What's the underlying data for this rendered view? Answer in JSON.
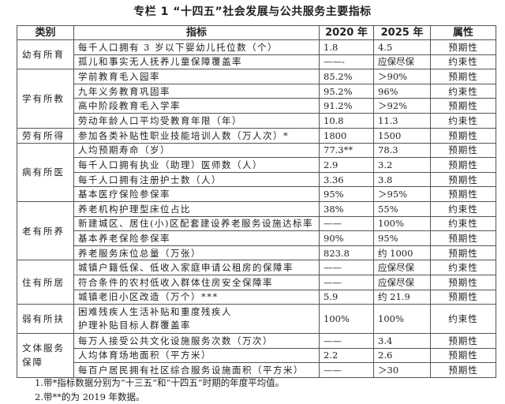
{
  "title": "专栏 1 “十四五”社会发展与公共服务主要指标",
  "headers": [
    "类别",
    "指标",
    "2020 年",
    "2025 年",
    "属性"
  ],
  "groups": [
    {
      "category": "幼有所育",
      "rows": [
        {
          "indicator": "每千人口拥有 3 岁以下婴幼儿托位数（个）",
          "y2020": "1.8",
          "y2025": "4.5",
          "attribute": "预期性"
        },
        {
          "indicator": "孤儿和事实无人抚养儿童保障覆盖率",
          "y2020": "——-",
          "y2025": "应保尽保",
          "attribute": "约束性"
        }
      ]
    },
    {
      "category": "学有所教",
      "rows": [
        {
          "indicator": "学前教育毛入园率",
          "y2020": "85.2%",
          "y2025": "＞90%",
          "attribute": "预期性"
        },
        {
          "indicator": "九年义务教育巩固率",
          "y2020": "95.2%",
          "y2025": "96%",
          "attribute": "约束性"
        },
        {
          "indicator": "高中阶段教育毛入学率",
          "y2020": "91.2%",
          "y2025": "＞92%",
          "attribute": "预期性"
        },
        {
          "indicator": "劳动年龄人口平均受教育年限（年）",
          "y2020": "10.8",
          "y2025": "11.3",
          "attribute": "约束性"
        }
      ]
    },
    {
      "category": "劳有所得",
      "rows": [
        {
          "indicator": "参加各类补贴性职业技能培训人数（万人次）*",
          "y2020": "1800",
          "y2025": "1500",
          "attribute": "预期性"
        }
      ]
    },
    {
      "category": "病有所医",
      "rows": [
        {
          "indicator": "人均预期寿命（岁）",
          "y2020": "77.3**",
          "y2025": "78.3",
          "attribute": "预期性"
        },
        {
          "indicator": "每千人口拥有执业（助理）医师数（人）",
          "y2020": "2.9",
          "y2025": "3.2",
          "attribute": "预期性"
        },
        {
          "indicator": "每千人口拥有注册护士数（人）",
          "y2020": "3.36",
          "y2025": "3.8",
          "attribute": "预期性"
        },
        {
          "indicator": "基本医疗保险参保率",
          "y2020": "95%",
          "y2025": "＞95%",
          "attribute": "预期性"
        }
      ]
    },
    {
      "category": "老有所养",
      "rows": [
        {
          "indicator": "养老机构护理型床位占比",
          "y2020": "38%",
          "y2025": "55%",
          "attribute": "约束性"
        },
        {
          "indicator": "新建城区、居住(小)区配套建设养老服务设施达标率",
          "y2020": "——",
          "y2025": "100%",
          "attribute": "约束性"
        },
        {
          "indicator": "基本养老保险参保率",
          "y2020": "90%",
          "y2025": "95%",
          "attribute": "预期性"
        },
        {
          "indicator": "养老服务床位总量（万张）",
          "y2020": "823.8",
          "y2025": "约 1000",
          "attribute": "预期性"
        }
      ]
    },
    {
      "category": "住有所居",
      "rows": [
        {
          "indicator": "城镇户籍低保、低收入家庭申请公租房的保障率",
          "y2020": "——",
          "y2025": "应保尽保",
          "attribute": "约束性"
        },
        {
          "indicator": "符合条件的农村低收入群体住房安全保障率",
          "y2020": "——",
          "y2025": "应保尽保",
          "attribute": "预期性"
        },
        {
          "indicator": "城镇老旧小区改造（万个）***",
          "y2020": "5.9",
          "y2025": "约 21.9",
          "attribute": "预期性"
        }
      ]
    },
    {
      "category": "弱有所扶",
      "rows": [
        {
          "indicator": "困难残疾人生活补贴和重度残疾人",
          "indicator2": "护理补贴目标人群覆盖率",
          "y2020": "100%",
          "y2025": "100%",
          "attribute": "约束性"
        }
      ]
    },
    {
      "category": "文体服务保障",
      "rows": [
        {
          "indicator": "每万人接受公共文化设施服务次数（万次）",
          "y2020": "——",
          "y2025": "3.4",
          "attribute": "预期性"
        },
        {
          "indicator": "人均体育场地面积（平方米）",
          "y2020": "2.2",
          "y2025": "2.6",
          "attribute": "预期性"
        },
        {
          "indicator": "每百户居民拥有社区综合服务设施面积（平方米）",
          "y2020": "——",
          "y2025": "＞30",
          "attribute": "预期性"
        }
      ]
    }
  ],
  "notes": [
    "1.带*指标数据分别为“十三五”和“十四五”时期的年度平均值。",
    "2.带**的为 2019 年数据。"
  ]
}
